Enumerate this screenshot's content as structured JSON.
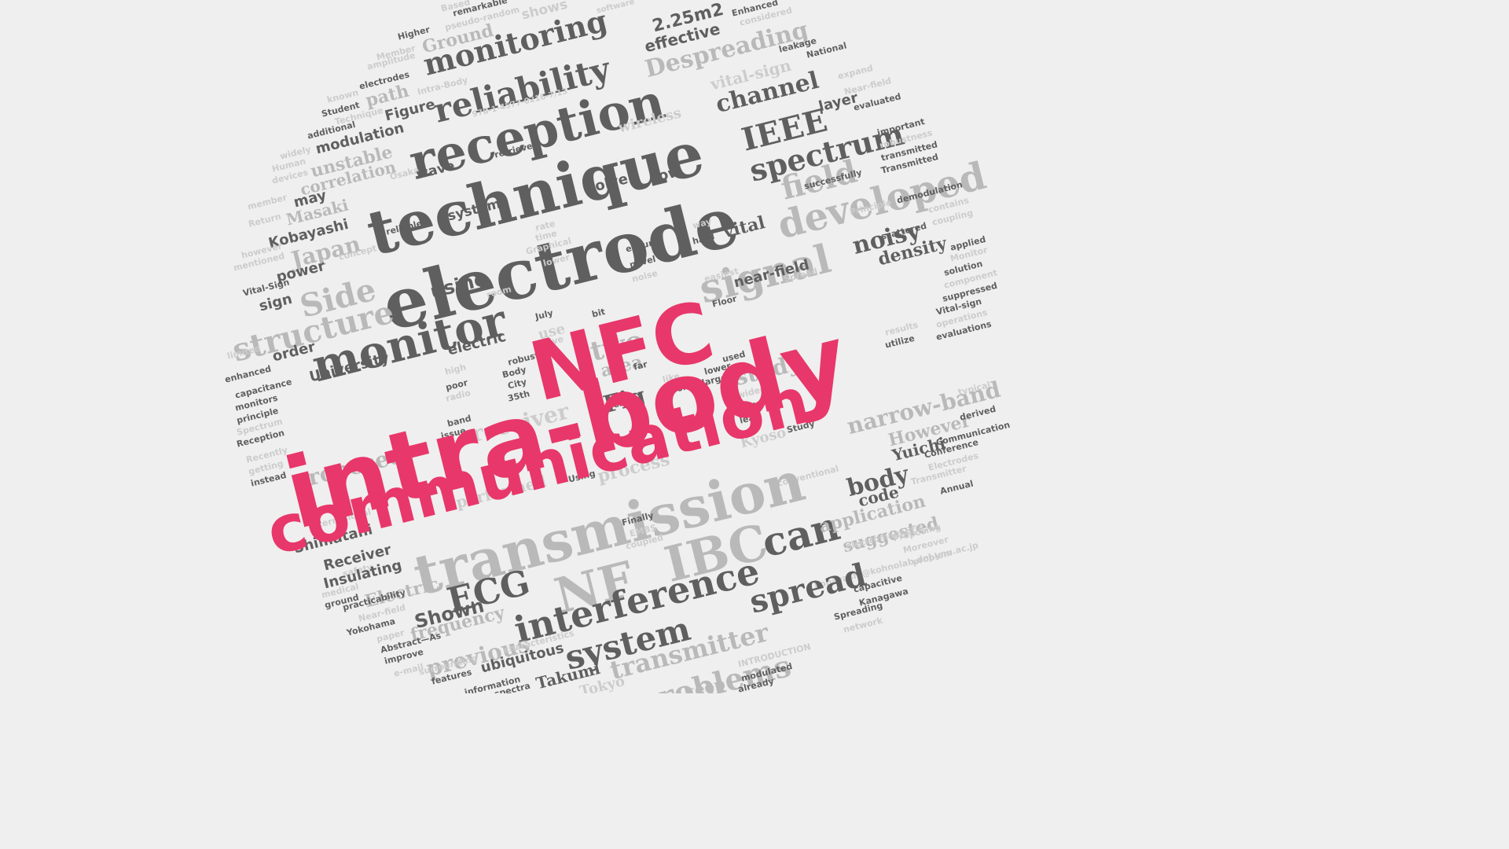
{
  "words": {
    "w1": "Based",
    "w2": "remarkable",
    "w3": "pseudo-random",
    "w4": "shows",
    "w5": "software",
    "w6": "Enhanced",
    "w7": "considered",
    "w8": "Higher",
    "w9": "Ground",
    "w10": "monitoring",
    "w11": "2.25m2",
    "w12": "effective",
    "w13": "Member",
    "w14": "amplitude",
    "w15": "Despreading",
    "w16": "leakage",
    "w17": "National",
    "w18": "electrodes",
    "w19": "path",
    "w20": "reliability",
    "w21": "vital-sign",
    "w22": "expand",
    "w23": "known",
    "w24": "Intra-Body",
    "w25": "channel",
    "w26": "Near-field",
    "w27": "Student",
    "w28": "Figure",
    "w29": "reception",
    "w30": "layer",
    "w31": "Technique",
    "w32": "978-1-4577-0216-7/13",
    "w33": "IEEE",
    "w34": "evaluated",
    "w35": "additional",
    "w36": "modulation",
    "w37": "wireless",
    "w38": "spectrum",
    "w39": "important",
    "w40": "unstable",
    "w41": "technique",
    "w42": "robustness",
    "w43": "widely",
    "w44": "retrieved",
    "w45": "transmitted",
    "w46": "Human",
    "w47": "correlation",
    "w48": "field",
    "w49": "Transmitted",
    "w50": "devices",
    "w51": "Osaka",
    "w52": "wave",
    "w53": "low",
    "w54": "successfully",
    "w55": "developed",
    "w56": "may",
    "w57": "solve",
    "w58": "electrode",
    "w59": "demodulation",
    "w60": "member",
    "w61": "Masaki",
    "w62": "systems",
    "w63": "Principle",
    "w64": "contains",
    "w65": "Return",
    "w66": "Kobayashi",
    "w67": "reliable",
    "w68": "rate",
    "w69": "vital",
    "w70": "noisy",
    "w71": "coupling",
    "w72": "Japan",
    "w73": "time",
    "w74": "way",
    "w75": "scattered",
    "w76": "however",
    "w77": "concept",
    "w78": "Graphical",
    "w79": "ensure",
    "w80": "hard",
    "w81": "signal",
    "w82": "density",
    "w83": "applied",
    "w84": "mentioned",
    "w85": "Side",
    "w86": "lower",
    "w87": "Monitor",
    "w88": "power",
    "w89": "using",
    "w90": "novel",
    "w91": "easiest",
    "w92": "near-field",
    "w93": "solution",
    "w94": "Vital-Sign",
    "w95": "noise",
    "w96": "Spread",
    "w97": "component",
    "w98": "sign",
    "w99": "room",
    "w100": "Floor",
    "w101": "suppressed",
    "w102": "structure",
    "w103": "monitor",
    "w104": "July",
    "w105": "bit",
    "w106": "Vital-sign",
    "w107": "use",
    "w108": "operations",
    "w109": "two",
    "w110": "results",
    "w111": "evaluations",
    "w112": "limited",
    "w113": "order",
    "w114": "electric",
    "w115": "give",
    "w116": "utilize",
    "w117": "University",
    "w118": "area",
    "w119": "study",
    "w120": "enhanced",
    "w121": "high",
    "w122": "robust",
    "w123": "far",
    "w124": "used",
    "w125": "Body",
    "w126": "lower",
    "w127": "larger",
    "w128": "capacitance",
    "w129": "poor",
    "w130": "like",
    "w131": "monitors",
    "w132": "City",
    "w133": "Fig",
    "w134": "error",
    "w135": "radio",
    "w136": "wider",
    "w137": "principle",
    "w138": "35th",
    "w139": "Upper",
    "w140": "even",
    "w141": "typical",
    "w142": "receiver",
    "w143": "leak",
    "w144": "narrow-band",
    "w145": "Spectrum",
    "w146": "band",
    "w147": "However",
    "w148": "Reception",
    "w149": "issue",
    "w150": "derived",
    "w151": "Kyoso",
    "w152": "Study",
    "w153": "Recently",
    "w154": "Yuichi",
    "w155": "proposed",
    "w156": "Communication",
    "w157": "getting",
    "w158": "Conference",
    "w159": "process",
    "w160": "body",
    "w161": "Electrodes",
    "w162": "instead",
    "w163": "Using",
    "w164": "code",
    "w165": "Transmitter",
    "w166": "performed",
    "w167": "conventional",
    "w168": "Annual",
    "w169": "transmission",
    "w170": "can",
    "w171": "application",
    "w172": "International",
    "w173": "Shimatani",
    "w174": "Finally",
    "w175": "suggested",
    "w176": "EMBS",
    "w177": "electromagnetic",
    "w178": "Proposing",
    "w179": "coupled",
    "w180": "Receiver",
    "w181": "IBC",
    "w182": "Moreover",
    "w183": "NF",
    "w184": "safety",
    "w185": "Insulating",
    "w186": "problem",
    "w187": "ECG",
    "w188": "kobayashi@kohnolab.dnj.ynu.ac.jp",
    "w189": "interference",
    "w190": "medical",
    "w191": "Electric",
    "w192": "ground",
    "w193": "practicability",
    "w194": "spread",
    "w195": "capacitive",
    "w196": "Kanagawa",
    "w197": "Shown",
    "w198": "Near-field",
    "w199": "frequency",
    "w200": "system",
    "w201": "Spreading",
    "w202": "Yokohama",
    "w203": "transmitter",
    "w204": "network",
    "w205": "paper",
    "w206": "Abstract—As",
    "w207": "previous",
    "w208": "improve",
    "w209": "ubiquitous",
    "w210": "problems",
    "w211": "characteristics",
    "w212": "e-mail",
    "w213": "INTRODUCTION",
    "w214": "surrounding",
    "w215": "Takumi",
    "w216": "features",
    "w217": "modulated",
    "w218": "information",
    "w219": "keep",
    "w220": "Tokyo",
    "w221": "spectra",
    "w222": "already",
    "w223": "NFC",
    "w224": "intra-body",
    "w225": "communication"
  },
  "colors": {
    "background": "#efefef",
    "dark": "#5f5f5f",
    "light": "#b9b9b9",
    "pale": "#cccccc",
    "accent": "#e8376a"
  }
}
